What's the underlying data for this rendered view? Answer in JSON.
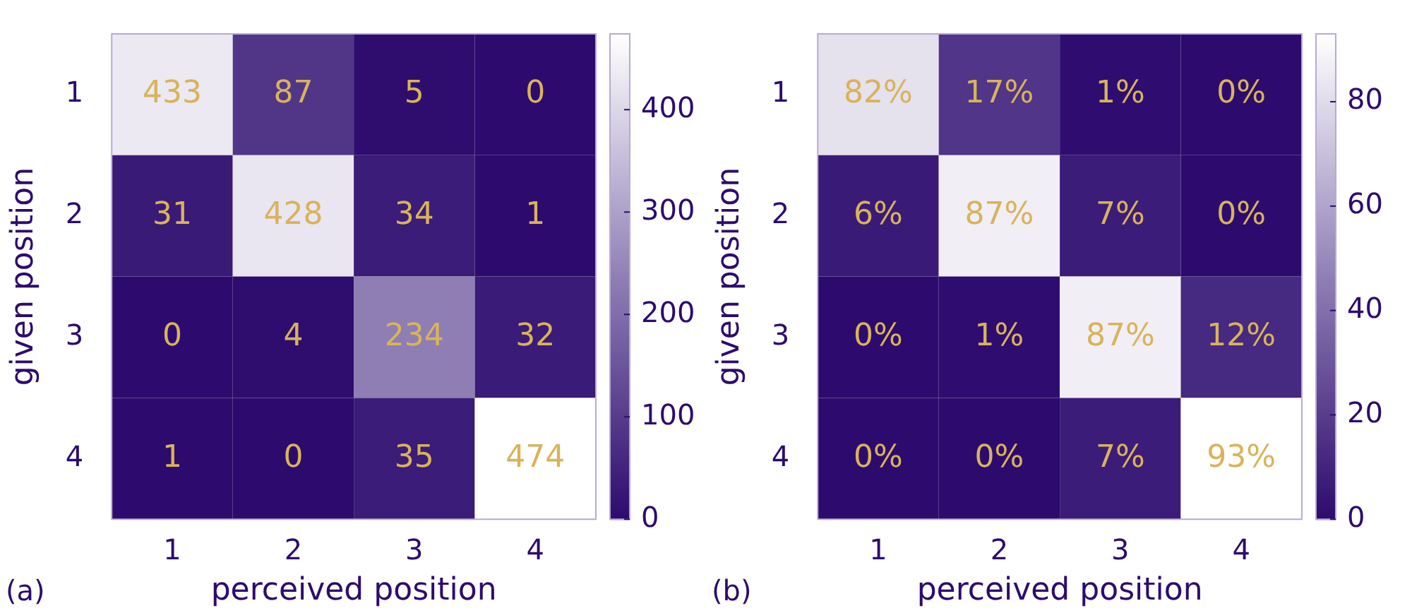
{
  "chart_data": [
    {
      "type": "heatmap",
      "categories": [
        "1",
        "2",
        "3",
        "4"
      ],
      "y_categories": [
        "1",
        "2",
        "3",
        "4"
      ],
      "xlabel": "perceived position",
      "ylabel": "given position",
      "cells": [
        [
          433,
          87,
          5,
          0
        ],
        [
          31,
          428,
          34,
          1
        ],
        [
          0,
          4,
          234,
          32
        ],
        [
          1,
          0,
          35,
          474
        ]
      ],
      "data_labels": true,
      "clim": [
        0,
        474
      ],
      "cticks": [
        0,
        100,
        200,
        300,
        400
      ],
      "annotations": [
        "(a)"
      ]
    },
    {
      "type": "heatmap",
      "categories": [
        "1",
        "2",
        "3",
        "4"
      ],
      "y_categories": [
        "1",
        "2",
        "3",
        "4"
      ],
      "xlabel": "perceived position",
      "ylabel": "given position",
      "cells": [
        [
          82,
          17,
          1,
          0
        ],
        [
          6,
          87,
          7,
          0
        ],
        [
          0,
          1,
          87,
          12
        ],
        [
          0,
          0,
          7,
          93
        ]
      ],
      "cell_labels": [
        [
          "82%",
          "17%",
          "1%",
          "0%"
        ],
        [
          "6%",
          "87%",
          "7%",
          "0%"
        ],
        [
          "0%",
          "1%",
          "87%",
          "12%"
        ],
        [
          "0%",
          "0%",
          "7%",
          "93%"
        ]
      ],
      "clim": [
        0,
        93
      ],
      "cticks": [
        0,
        20,
        40,
        60,
        80
      ],
      "annotations": [
        "(b)"
      ]
    }
  ]
}
